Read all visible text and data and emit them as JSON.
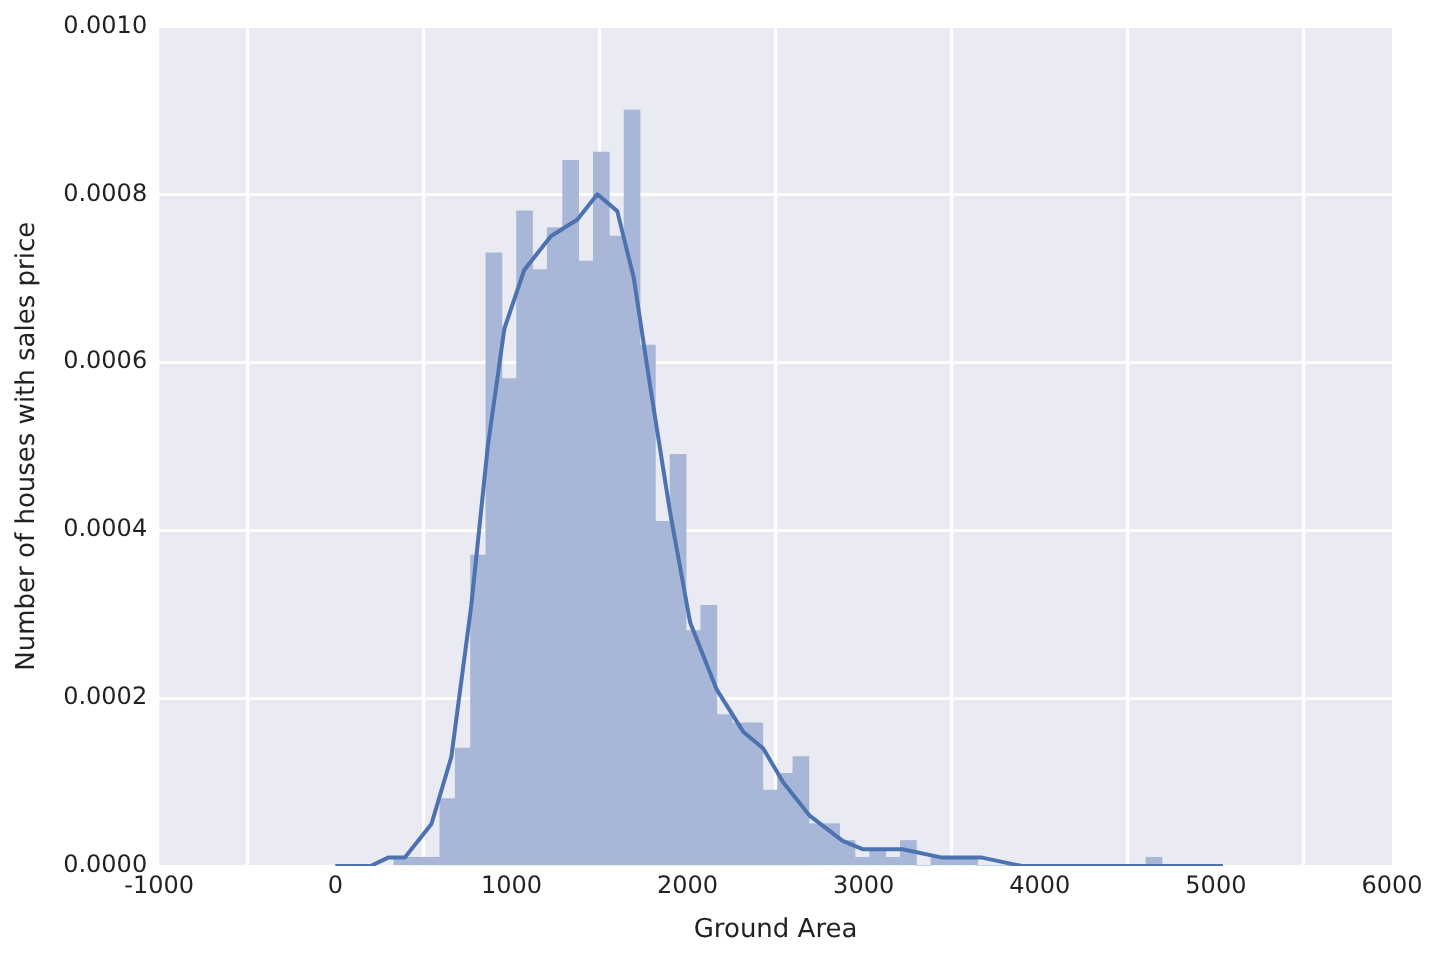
{
  "chart_data": {
    "type": "histogram",
    "xlabel": "Ground Area",
    "ylabel": "Number of houses with sales price",
    "bins": [
      334,
      421.16,
      508.32,
      595.48,
      682.64,
      769.8,
      856.96,
      944.12,
      1031.28,
      1118.44,
      1205.6,
      1292.76,
      1379.92,
      1467.08,
      1554.24,
      1641.4,
      1728.56,
      1815.72,
      1902.88,
      1990.04,
      2077.2,
      2164.36,
      2251.52,
      2338.68,
      2425.84,
      2513,
      2600.16,
      2687.32,
      2774.48,
      2861.64,
      2948.8,
      3035.96,
      3123.12,
      3210.28,
      3297.44,
      3384.6,
      3471.76,
      3558.92,
      3646.08,
      3733.24,
      3820.4,
      3907.56,
      3994.72,
      4081.88,
      4169.04,
      4256.2,
      4343.36,
      4430.52,
      4517.68,
      4604.84,
      4692
    ],
    "values": [
      1e-05,
      1e-05,
      1e-05,
      8e-05,
      0.00014,
      0.00037,
      0.00073,
      0.00058,
      0.00078,
      0.00071,
      0.00076,
      0.00084,
      0.00072,
      0.00085,
      0.00075,
      0.0009,
      0.00062,
      0.00041,
      0.00049,
      0.00028,
      0.00031,
      0.00018,
      0.00017,
      0.00017,
      9e-05,
      0.00011,
      0.00013,
      5e-05,
      5e-05,
      3e-05,
      1e-05,
      2e-05,
      1e-05,
      3e-05,
      0,
      1e-05,
      1e-05,
      1e-05,
      0,
      0,
      0,
      0,
      0,
      0,
      0,
      0,
      0,
      0,
      0,
      1e-05
    ],
    "color": "#a8b7d7",
    "series": [
      {
        "type": "line",
        "color": "#4c72b0",
        "x": [
          0,
          200,
          300,
          395,
          546,
          659,
          772,
          866,
          960,
          1073,
          1224,
          1375,
          1488,
          1601,
          1695,
          1789,
          1902,
          2015,
          2166,
          2316,
          2430,
          2542,
          2693,
          2881,
          2994,
          3220,
          3446,
          3672,
          3898,
          4300,
          4600,
          5040
        ],
        "values": [
          0,
          0,
          1e-05,
          1e-05,
          5e-05,
          0.00013,
          0.00031,
          0.0005,
          0.00064,
          0.00071,
          0.00075,
          0.00077,
          0.0008,
          0.00078,
          0.0007,
          0.00057,
          0.00042,
          0.00029,
          0.00021,
          0.00016,
          0.00014,
          0.0001,
          6e-05,
          3e-05,
          2e-05,
          2e-05,
          1e-05,
          1e-05,
          0,
          0,
          0,
          0
        ]
      }
    ],
    "xlim": [
      -1000,
      6000
    ],
    "xticks": [
      -1000,
      0,
      1000,
      2000,
      3000,
      4000,
      5000,
      6000
    ],
    "ylim": [
      0,
      0.001
    ],
    "yticks": [
      {
        "value": 0,
        "label": "0.0000"
      },
      {
        "value": 0.0002,
        "label": "0.0002"
      },
      {
        "value": 0.0004,
        "label": "0.0004"
      },
      {
        "value": 0.0006,
        "label": "0.0006"
      },
      {
        "value": 0.0008,
        "label": "0.0008"
      },
      {
        "value": 0.001,
        "label": "0.0010"
      }
    ],
    "grid": true,
    "marker": "none",
    "legend": false
  }
}
